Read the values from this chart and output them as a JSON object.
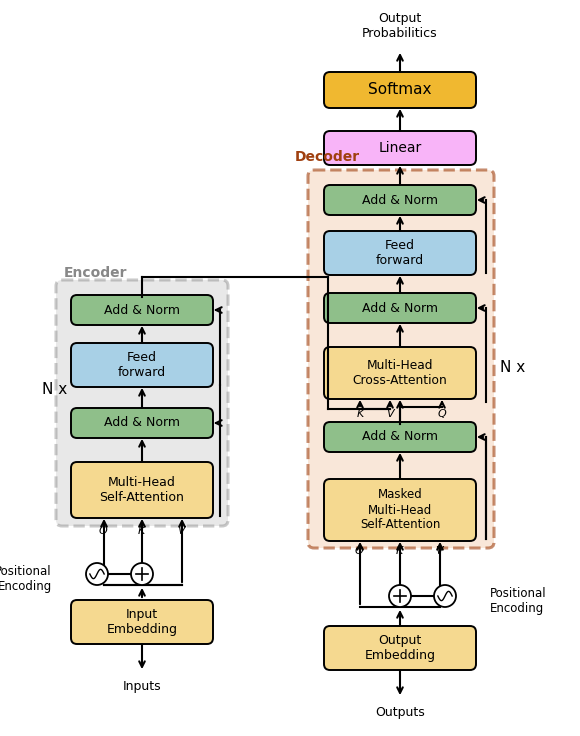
{
  "colors": {
    "green": "#8FBF8A",
    "blue": "#A8D0E6",
    "yellow": "#F5D990",
    "pink": "#F8B4F8",
    "orange_bg": "#F5D8C0",
    "gray_bg": "#CCCCCC",
    "softmax": "#F0B830",
    "white": "#FFFFFF",
    "encoder_border": "#888888",
    "decoder_border": "#A04010"
  },
  "encoder_label": "Encoder",
  "decoder_label": "Decoder",
  "nx_label": "N x",
  "output_prob": "Output\nProbabilitics",
  "inputs_label": "Inputs",
  "outputs_label": "Outputs",
  "pos_enc_label": "Positional\nEncoding"
}
